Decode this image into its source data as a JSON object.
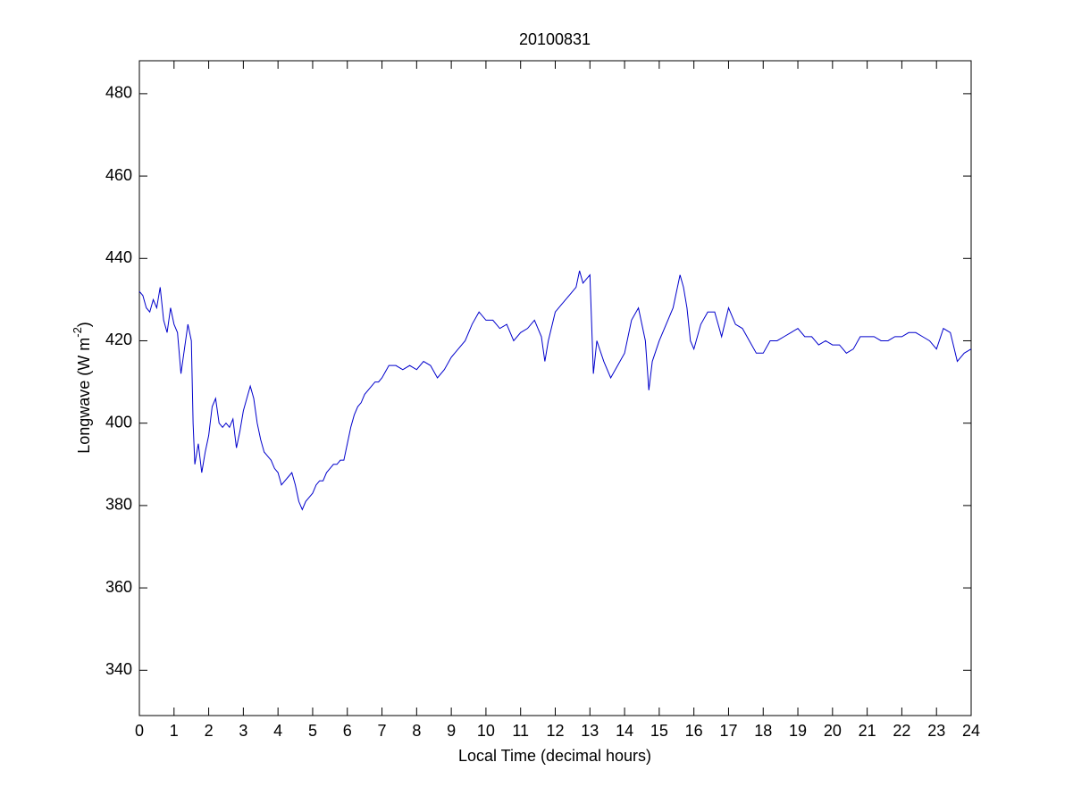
{
  "chart_data": {
    "type": "line",
    "title": "20100831",
    "xlabel": "Local Time (decimal hours)",
    "ylabel": [
      "Longwave (W m",
      "-2",
      ")"
    ],
    "color": "#0000cc",
    "xlim": [
      0,
      24
    ],
    "ylim": [
      329,
      488
    ],
    "xticks": [
      0,
      1,
      2,
      3,
      4,
      5,
      6,
      7,
      8,
      9,
      10,
      11,
      12,
      13,
      14,
      15,
      16,
      17,
      18,
      19,
      20,
      21,
      22,
      23,
      24
    ],
    "yticks": [
      340,
      360,
      380,
      400,
      420,
      440,
      460,
      480
    ],
    "x": [
      0,
      0.1,
      0.2,
      0.3,
      0.4,
      0.5,
      0.6,
      0.7,
      0.8,
      0.9,
      1.0,
      1.1,
      1.2,
      1.3,
      1.4,
      1.5,
      1.55,
      1.6,
      1.7,
      1.8,
      1.9,
      2.0,
      2.1,
      2.2,
      2.3,
      2.4,
      2.5,
      2.6,
      2.7,
      2.8,
      2.9,
      3.0,
      3.1,
      3.2,
      3.3,
      3.4,
      3.5,
      3.6,
      3.7,
      3.8,
      3.9,
      4.0,
      4.1,
      4.2,
      4.3,
      4.4,
      4.5,
      4.6,
      4.7,
      4.8,
      4.9,
      5.0,
      5.1,
      5.2,
      5.3,
      5.4,
      5.5,
      5.6,
      5.7,
      5.8,
      5.9,
      6.0,
      6.1,
      6.2,
      6.3,
      6.4,
      6.5,
      6.6,
      6.7,
      6.8,
      6.9,
      7.0,
      7.2,
      7.4,
      7.6,
      7.8,
      8.0,
      8.2,
      8.4,
      8.6,
      8.8,
      9.0,
      9.2,
      9.4,
      9.6,
      9.8,
      10.0,
      10.2,
      10.4,
      10.6,
      10.8,
      11.0,
      11.2,
      11.4,
      11.6,
      11.7,
      11.8,
      12.0,
      12.2,
      12.4,
      12.6,
      12.7,
      12.8,
      13.0,
      13.1,
      13.2,
      13.4,
      13.6,
      13.8,
      14.0,
      14.2,
      14.4,
      14.6,
      14.7,
      14.8,
      15.0,
      15.2,
      15.4,
      15.6,
      15.7,
      15.8,
      15.9,
      16.0,
      16.2,
      16.4,
      16.6,
      16.8,
      17.0,
      17.2,
      17.4,
      17.6,
      17.8,
      18.0,
      18.2,
      18.4,
      18.6,
      18.8,
      19.0,
      19.2,
      19.4,
      19.6,
      19.8,
      20.0,
      20.2,
      20.4,
      20.6,
      20.8,
      21.0,
      21.2,
      21.4,
      21.6,
      21.8,
      22.0,
      22.2,
      22.4,
      22.6,
      22.8,
      23.0,
      23.2,
      23.4,
      23.6,
      23.8,
      24.0
    ],
    "values": [
      432,
      431,
      428,
      427,
      430,
      428,
      433,
      425,
      422,
      428,
      424,
      422,
      412,
      418,
      424,
      420,
      400,
      390,
      395,
      388,
      393,
      397,
      404,
      406,
      400,
      399,
      400,
      399,
      401,
      394,
      398,
      403,
      406,
      409,
      406,
      400,
      396,
      393,
      392,
      391,
      389,
      388,
      385,
      386,
      387,
      388,
      385,
      381,
      379,
      381,
      382,
      383,
      385,
      386,
      386,
      388,
      389,
      390,
      390,
      391,
      391,
      395,
      399,
      402,
      404,
      405,
      407,
      408,
      409,
      410,
      410,
      411,
      414,
      414,
      413,
      414,
      413,
      415,
      414,
      411,
      413,
      416,
      418,
      420,
      424,
      427,
      425,
      425,
      423,
      424,
      420,
      422,
      423,
      425,
      421,
      415,
      420,
      427,
      429,
      431,
      433,
      437,
      434,
      436,
      412,
      420,
      415,
      411,
      414,
      417,
      425,
      428,
      420,
      408,
      415,
      420,
      424,
      428,
      436,
      433,
      428,
      420,
      418,
      424,
      427,
      427,
      421,
      428,
      424,
      423,
      420,
      417,
      417,
      420,
      420,
      421,
      422,
      423,
      421,
      421,
      419,
      420,
      419,
      419,
      417,
      418,
      421,
      421,
      421,
      420,
      420,
      421,
      421,
      422,
      422,
      421,
      420,
      418,
      423,
      422,
      415,
      417,
      418
    ]
  }
}
